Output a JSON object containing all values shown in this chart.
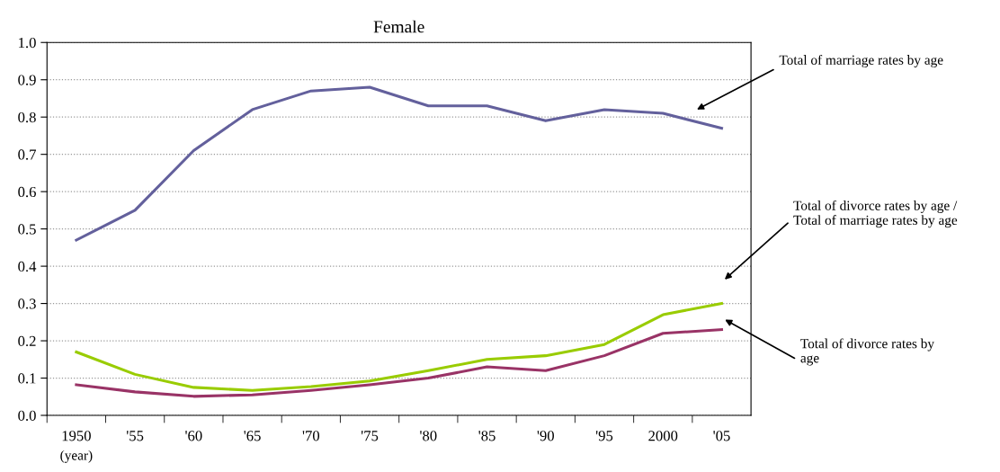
{
  "chart_data": {
    "type": "line",
    "title": "Female",
    "categories": [
      "1950",
      "'55",
      "'60",
      "'65",
      "'70",
      "'75",
      "'80",
      "'85",
      "'90",
      "'95",
      "2000",
      "'05"
    ],
    "series": [
      {
        "color": "#63609c",
        "values": [
          0.47,
          0.55,
          0.71,
          0.82,
          0.87,
          0.88,
          0.83,
          0.83,
          0.79,
          0.82,
          0.81,
          0.77
        ]
      },
      {
        "color": "#99cc00",
        "values": [
          0.17,
          0.11,
          0.075,
          0.067,
          0.077,
          0.092,
          0.12,
          0.15,
          0.16,
          0.19,
          0.27,
          0.3
        ]
      },
      {
        "color": "#993366",
        "values": [
          0.082,
          0.063,
          0.051,
          0.055,
          0.067,
          0.082,
          0.1,
          0.13,
          0.12,
          0.16,
          0.22,
          0.23
        ]
      }
    ],
    "ylim": [
      0,
      1.0
    ],
    "yticks": [
      {
        "value": 0,
        "label": "0.0"
      },
      0.1,
      0.2,
      0.3,
      0.4,
      0.5,
      0.6,
      0.7,
      0.8,
      0.9,
      {
        "value": 1.0,
        "label": "1.0"
      }
    ],
    "grid": "y",
    "marker": "none",
    "line_style": "solid",
    "annotations": [
      "Total of marriage rates by age",
      "Total of divorce rates by age /\nTotal of marriage rates by age",
      "Total of divorce rates by\nage",
      "(year)"
    ]
  }
}
